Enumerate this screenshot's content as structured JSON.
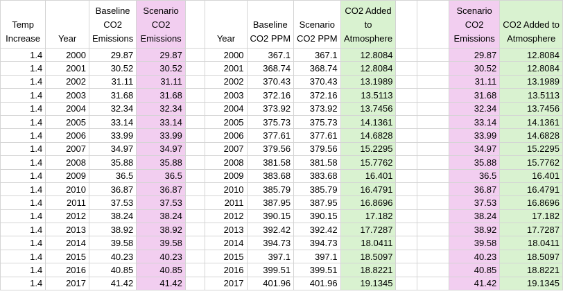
{
  "colors": {
    "scenario_emissions_fill": "#f2cef0",
    "co2_added_fill": "#d9f2d0",
    "grid": "#d4d4d4"
  },
  "headers": {
    "temp_increase": [
      "Temp",
      "Increase"
    ],
    "year": [
      "Year"
    ],
    "baseline_emissions": [
      "Baseline",
      "CO2",
      "Emissions"
    ],
    "scenario_emissions": [
      "Scenario",
      "CO2",
      "Emissions"
    ],
    "year2": [
      "Year"
    ],
    "baseline_ppm": [
      "Baseline",
      "CO2 PPM"
    ],
    "scenario_ppm": [
      "Scenario",
      "CO2 PPM"
    ],
    "co2_added": [
      "CO2 Added",
      "to",
      "Atmosphere"
    ],
    "scenario_emissions2": [
      "Scenario",
      "CO2",
      "Emissions"
    ],
    "co2_added2": [
      "CO2 Added to",
      "Atmosphere"
    ]
  },
  "rows": [
    [
      "1.4",
      "2000",
      "29.87",
      "29.87",
      "2000",
      "367.1",
      "367.1",
      "12.8084",
      "29.87",
      "12.8084"
    ],
    [
      "1.4",
      "2001",
      "30.52",
      "30.52",
      "2001",
      "368.74",
      "368.74",
      "12.8084",
      "30.52",
      "12.8084"
    ],
    [
      "1.4",
      "2002",
      "31.11",
      "31.11",
      "2002",
      "370.43",
      "370.43",
      "13.1989",
      "31.11",
      "13.1989"
    ],
    [
      "1.4",
      "2003",
      "31.68",
      "31.68",
      "2003",
      "372.16",
      "372.16",
      "13.5113",
      "31.68",
      "13.5113"
    ],
    [
      "1.4",
      "2004",
      "32.34",
      "32.34",
      "2004",
      "373.92",
      "373.92",
      "13.7456",
      "32.34",
      "13.7456"
    ],
    [
      "1.4",
      "2005",
      "33.14",
      "33.14",
      "2005",
      "375.73",
      "375.73",
      "14.1361",
      "33.14",
      "14.1361"
    ],
    [
      "1.4",
      "2006",
      "33.99",
      "33.99",
      "2006",
      "377.61",
      "377.61",
      "14.6828",
      "33.99",
      "14.6828"
    ],
    [
      "1.4",
      "2007",
      "34.97",
      "34.97",
      "2007",
      "379.56",
      "379.56",
      "15.2295",
      "34.97",
      "15.2295"
    ],
    [
      "1.4",
      "2008",
      "35.88",
      "35.88",
      "2008",
      "381.58",
      "381.58",
      "15.7762",
      "35.88",
      "15.7762"
    ],
    [
      "1.4",
      "2009",
      "36.5",
      "36.5",
      "2009",
      "383.68",
      "383.68",
      "16.401",
      "36.5",
      "16.401"
    ],
    [
      "1.4",
      "2010",
      "36.87",
      "36.87",
      "2010",
      "385.79",
      "385.79",
      "16.4791",
      "36.87",
      "16.4791"
    ],
    [
      "1.4",
      "2011",
      "37.53",
      "37.53",
      "2011",
      "387.95",
      "387.95",
      "16.8696",
      "37.53",
      "16.8696"
    ],
    [
      "1.4",
      "2012",
      "38.24",
      "38.24",
      "2012",
      "390.15",
      "390.15",
      "17.182",
      "38.24",
      "17.182"
    ],
    [
      "1.4",
      "2013",
      "38.92",
      "38.92",
      "2013",
      "392.42",
      "392.42",
      "17.7287",
      "38.92",
      "17.7287"
    ],
    [
      "1.4",
      "2014",
      "39.58",
      "39.58",
      "2014",
      "394.73",
      "394.73",
      "18.0411",
      "39.58",
      "18.0411"
    ],
    [
      "1.4",
      "2015",
      "40.23",
      "40.23",
      "2015",
      "397.1",
      "397.1",
      "18.5097",
      "40.23",
      "18.5097"
    ],
    [
      "1.4",
      "2016",
      "40.85",
      "40.85",
      "2016",
      "399.51",
      "399.51",
      "18.8221",
      "40.85",
      "18.8221"
    ],
    [
      "1.4",
      "2017",
      "41.42",
      "41.42",
      "2017",
      "401.96",
      "401.96",
      "19.1345",
      "41.42",
      "19.1345"
    ]
  ]
}
